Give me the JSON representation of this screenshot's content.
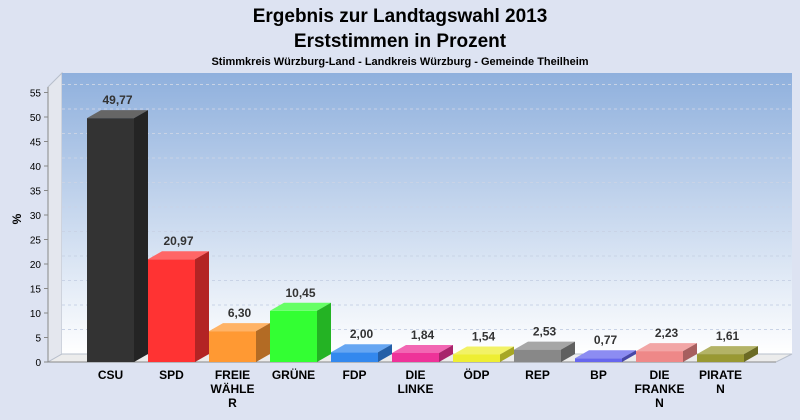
{
  "chart_data": {
    "type": "bar",
    "title": "Ergebnis zur Landtagswahl 2013",
    "subtitle": "Erststimmen in Prozent",
    "caption": "Stimmkreis Würzburg-Land - Landkreis Würzburg - Gemeinde Theilheim",
    "ylabel": "%",
    "xlabel": "",
    "ylim": [
      0,
      57
    ],
    "yticks": [
      0,
      5,
      10,
      15,
      20,
      25,
      30,
      35,
      40,
      45,
      50,
      55
    ],
    "grid": true,
    "categories": [
      [
        "CSU"
      ],
      [
        "SPD"
      ],
      [
        "FREIE",
        "WÄHLE",
        "R"
      ],
      [
        "GRÜNE"
      ],
      [
        "FDP"
      ],
      [
        "DIE",
        "LINKE"
      ],
      [
        "ÖDP"
      ],
      [
        "REP"
      ],
      [
        "BP"
      ],
      [
        "DIE",
        "FRANKE",
        "N"
      ],
      [
        "PIRATE",
        "N"
      ]
    ],
    "values": [
      49.77,
      20.97,
      6.3,
      10.45,
      2.0,
      1.84,
      1.54,
      2.53,
      0.77,
      2.23,
      1.61
    ],
    "value_labels": [
      "49,77",
      "20,97",
      "6,30",
      "10,45",
      "2,00",
      "1,84",
      "1,54",
      "2,53",
      "0,77",
      "2,23",
      "1,61"
    ],
    "colors": [
      "#333333",
      "#ff3333",
      "#ff9933",
      "#33ff33",
      "#3388ee",
      "#ee3399",
      "#eeee33",
      "#888888",
      "#6666ee",
      "#ee8888",
      "#999933"
    ]
  }
}
